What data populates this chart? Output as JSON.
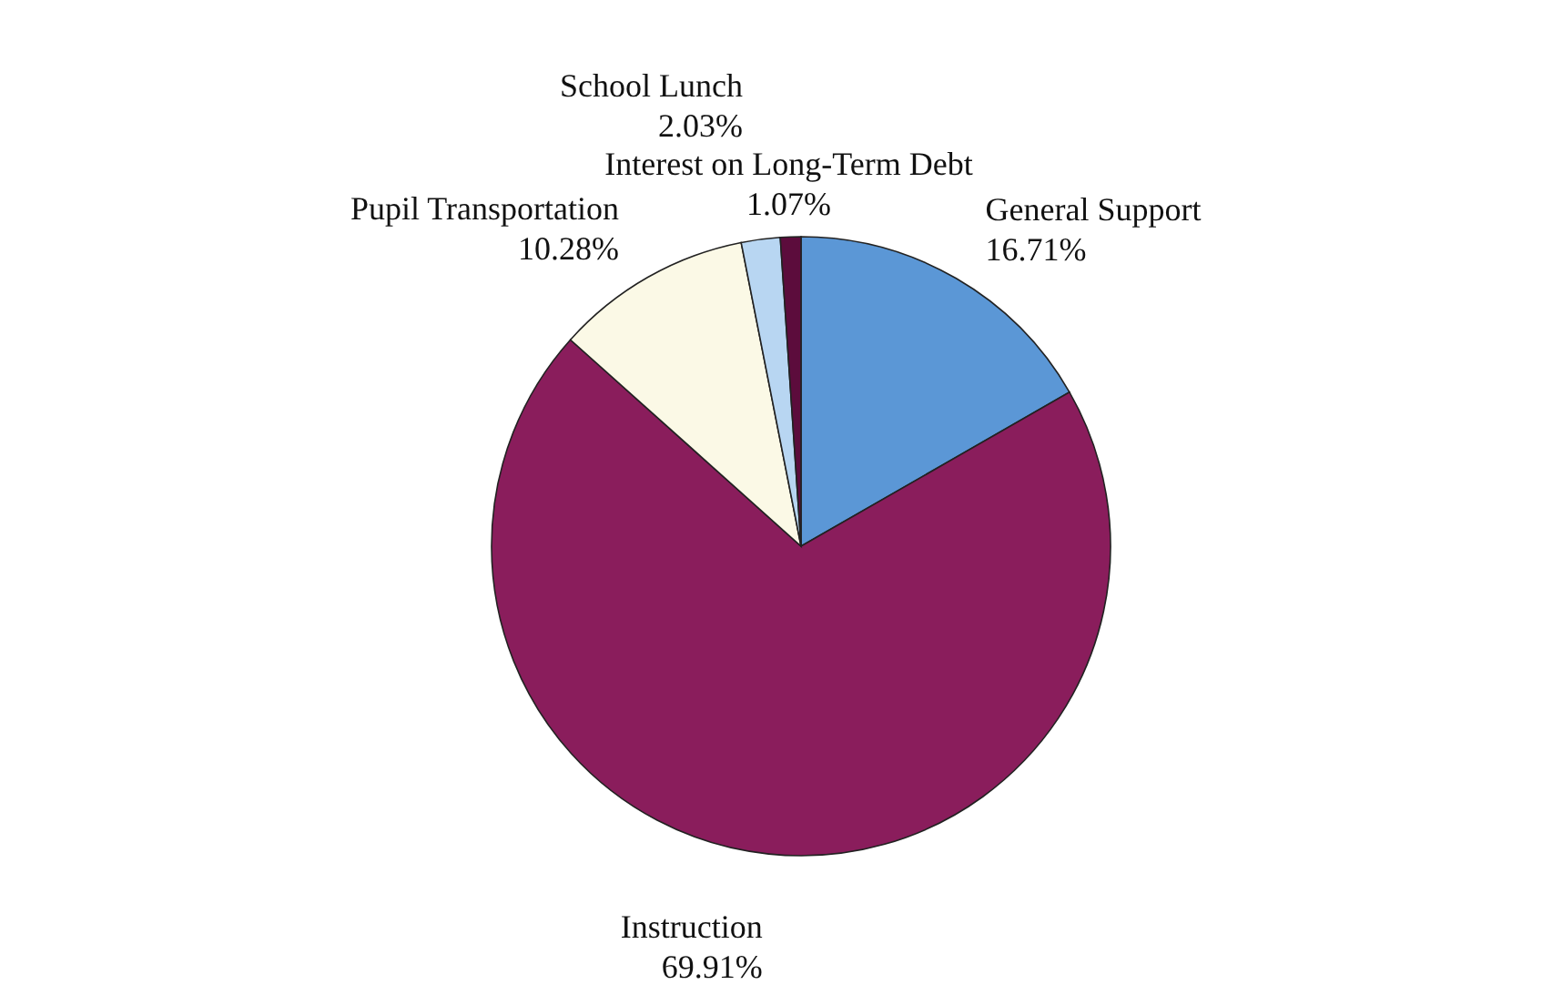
{
  "chart_data": {
    "type": "pie",
    "categories": [
      "General Support",
      "Instruction",
      "Pupil Transportation",
      "School Lunch",
      "Interest on Long-Term Debt"
    ],
    "values": [
      16.71,
      69.91,
      10.28,
      2.03,
      1.07
    ],
    "colors": [
      "#5b97d6",
      "#8a1d5c",
      "#fbf9e6",
      "#b8d6f2",
      "#5c0c3c"
    ],
    "value_labels": [
      "16.71%",
      "69.91%",
      "10.28%",
      "2.03%",
      "1.07%"
    ]
  }
}
